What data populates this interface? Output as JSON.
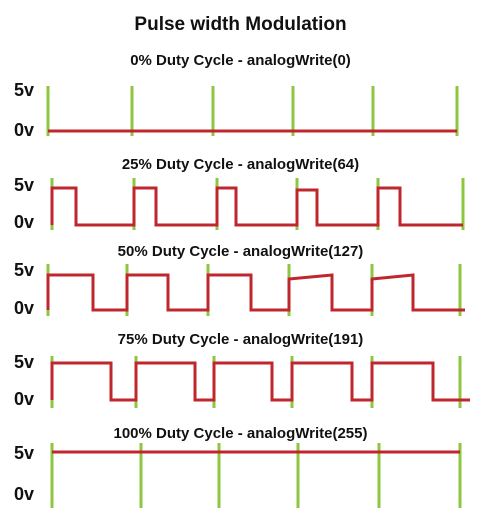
{
  "title": "Pulse width Modulation",
  "level_labels": {
    "high": "5v",
    "low": "0v"
  },
  "colors": {
    "marker": "#8dc63f",
    "signal": "#c0272d"
  },
  "panels": [
    {
      "caption": "0% Duty Cycle - analogWrite(0)",
      "duty_percent": 0
    },
    {
      "caption": "25% Duty Cycle - analogWrite(64)",
      "duty_percent": 25
    },
    {
      "caption": "50% Duty Cycle - analogWrite(127)",
      "duty_percent": 50
    },
    {
      "caption": "75% Duty Cycle - analogWrite(191)",
      "duty_percent": 75
    },
    {
      "caption": "100% Duty Cycle - analogWrite(255)",
      "duty_percent": 100
    }
  ]
}
